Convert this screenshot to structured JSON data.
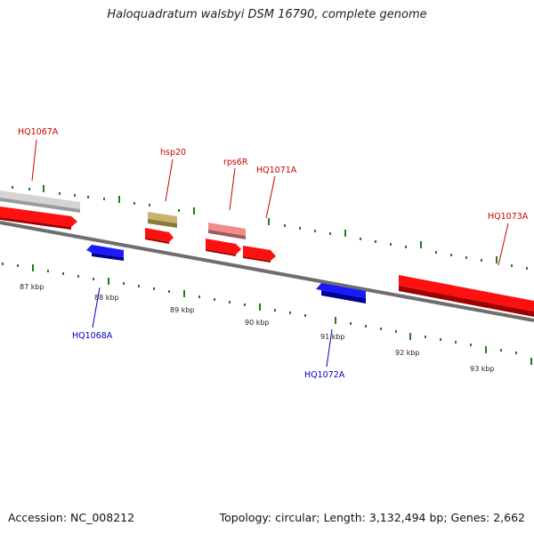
{
  "title": "Haloquadratum walsbyi DSM 16790, complete genome",
  "footer": {
    "accession": "Accession: NC_008212",
    "summary": "Topology: circular; Length: 3,132,494 bp; Genes: 2,662"
  },
  "colors": {
    "forward_gene": "#ff0000",
    "reverse_gene": "#0000ff",
    "pseudogene_gray": "#c8c8c8",
    "olive_feature": "#c8b46e",
    "pink_feature": "#f08c8c",
    "forward_label": "#cc0000",
    "reverse_label": "#0000bb",
    "tick": "#1a7a1a",
    "backbone": "#777777"
  },
  "scale_labels": [
    "87 kbp",
    "88 kbp",
    "89 kbp",
    "90 kbp",
    "91 kbp",
    "92 kbp",
    "93 kbp"
  ],
  "gene_labels": {
    "HQ1067A": "HQ1067A",
    "hsp20": "hsp20",
    "rps6R": "rps6R",
    "HQ1071A": "HQ1071A",
    "HQ1073A": "HQ1073A",
    "HQ1068A": "HQ1068A",
    "HQ1072A": "HQ1072A"
  }
}
